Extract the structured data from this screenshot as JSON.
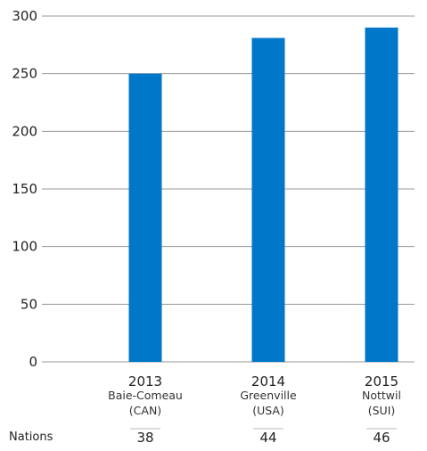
{
  "chart_data": {
    "type": "bar",
    "categories": [
      "2013",
      "2014",
      "2015"
    ],
    "category_sublabels": [
      [
        "Baie-Comeau",
        "(CAN)"
      ],
      [
        "Greenville",
        "(USA)"
      ],
      [
        "Nottwil",
        "(SUI)"
      ]
    ],
    "values": [
      250,
      281,
      290
    ],
    "ylim": [
      0,
      300
    ],
    "yticks": [
      0,
      50,
      100,
      150,
      200,
      250,
      300
    ],
    "bar_color": "#0077c8",
    "grid": true,
    "nations_label": "Nations",
    "nations": [
      38,
      44,
      46
    ]
  }
}
